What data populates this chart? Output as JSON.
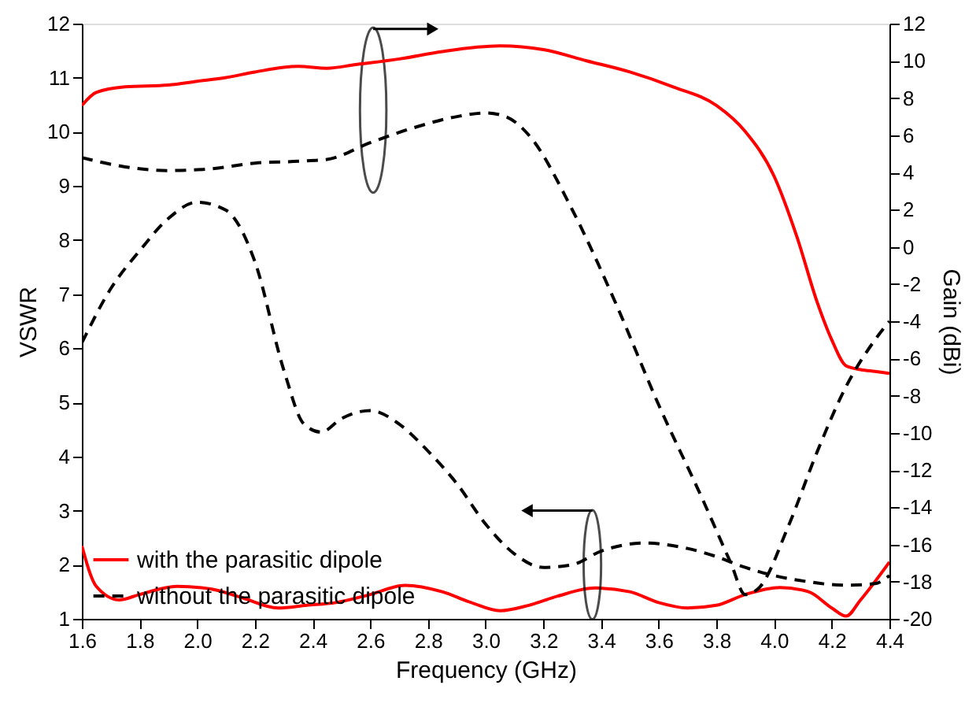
{
  "chart_data": {
    "type": "line",
    "xlabel": "Frequency (GHz)",
    "ylabel": "VSWR",
    "y2label": "Gain (dBi)",
    "xlim": [
      1.6,
      4.4
    ],
    "xticks": [
      1.6,
      1.8,
      {
        "value": 2.0,
        "label": "2.0"
      },
      2.2,
      2.4,
      2.6,
      2.8,
      {
        "value": 3.0,
        "label": "3.0"
      },
      3.2,
      3.4,
      3.6,
      3.8,
      {
        "value": 4.0,
        "label": "4.0"
      },
      4.2,
      4.4
    ],
    "ylim": [
      1,
      12
    ],
    "yticks": [
      1,
      2,
      3,
      4,
      5,
      6,
      7,
      8,
      9,
      10,
      11,
      12
    ],
    "y2lim": [
      -20,
      12
    ],
    "y2ticks": [
      -20,
      -18,
      -16,
      -14,
      -12,
      -10,
      -8,
      -6,
      -4,
      -2,
      0,
      2,
      4,
      6,
      8,
      10,
      12
    ],
    "legend": "bottom left",
    "grid": false,
    "marker": "none",
    "series": [
      {
        "name": "with the parasitic dipole",
        "color": "#ff0000",
        "line_style": "solid",
        "x": [
          1.6,
          1.65,
          1.73,
          1.8,
          1.93,
          2.05,
          2.15,
          2.28,
          2.38,
          2.48,
          2.6,
          2.72,
          2.85,
          2.95,
          3.05,
          3.15,
          3.25,
          3.38,
          3.5,
          3.6,
          3.7,
          3.8,
          3.9,
          4.02,
          4.12,
          4.2,
          4.25,
          4.3,
          4.4
        ],
        "values": [
          2.35,
          1.6,
          1.35,
          1.45,
          1.6,
          1.55,
          1.4,
          1.2,
          1.25,
          1.3,
          1.45,
          1.62,
          1.5,
          1.3,
          1.15,
          1.25,
          1.42,
          1.57,
          1.5,
          1.3,
          1.2,
          1.25,
          1.45,
          1.58,
          1.5,
          1.2,
          1.05,
          1.35,
          2.05
        ]
      },
      {
        "name": "without the parasitic dipole",
        "color": "#000000",
        "line_style": "dashed",
        "x": [
          1.6,
          1.7,
          1.8,
          1.9,
          2.0,
          2.1,
          2.2,
          2.3,
          2.37,
          2.43,
          2.5,
          2.6,
          2.7,
          2.8,
          2.9,
          3.0,
          3.1,
          3.2,
          3.3,
          3.4,
          3.55,
          3.7,
          3.8,
          3.9,
          4.0,
          4.1,
          4.25,
          4.35,
          4.4
        ],
        "values": [
          6.1,
          7.1,
          7.8,
          8.4,
          8.7,
          8.55,
          7.6,
          5.6,
          4.6,
          4.45,
          4.7,
          4.85,
          4.6,
          4.1,
          3.5,
          2.75,
          2.2,
          1.95,
          2.0,
          2.25,
          2.4,
          2.3,
          2.15,
          1.95,
          1.8,
          1.7,
          1.62,
          1.65,
          1.8
        ]
      },
      {
        "color": "#ff0000",
        "line_style": "solid",
        "axis": "y2",
        "x": [
          1.6,
          1.65,
          1.75,
          1.9,
          2.0,
          2.1,
          2.2,
          2.35,
          2.45,
          2.55,
          2.7,
          2.85,
          3.05,
          3.2,
          3.35,
          3.5,
          3.65,
          3.8,
          3.9,
          4.0,
          4.08,
          4.15,
          4.2,
          4.25,
          4.3,
          4.35,
          4.4
        ],
        "values": [
          7.6,
          8.3,
          8.6,
          8.7,
          8.9,
          9.1,
          9.4,
          9.7,
          9.6,
          9.8,
          10.1,
          10.5,
          10.8,
          10.6,
          10.0,
          9.4,
          8.6,
          7.6,
          6.2,
          3.8,
          0.5,
          -3.0,
          -5.0,
          -6.4,
          -6.6,
          -6.7,
          -6.8
        ]
      },
      {
        "color": "#000000",
        "line_style": "dashed",
        "axis": "y2",
        "x": [
          1.6,
          1.75,
          1.9,
          2.05,
          2.2,
          2.35,
          2.45,
          2.6,
          2.75,
          2.9,
          3.0,
          3.07,
          3.15,
          3.3,
          3.45,
          3.6,
          3.75,
          3.85,
          3.9,
          3.95,
          4.05,
          4.15,
          4.25,
          4.35,
          4.4
        ],
        "values": [
          4.8,
          4.3,
          4.1,
          4.2,
          4.5,
          4.6,
          4.7,
          5.6,
          6.4,
          7.0,
          7.2,
          7.0,
          6.0,
          2.0,
          -3.0,
          -8.5,
          -13.5,
          -17.0,
          -18.7,
          -18.3,
          -15.0,
          -11.0,
          -7.5,
          -5.0,
          -4.0
        ]
      }
    ]
  }
}
